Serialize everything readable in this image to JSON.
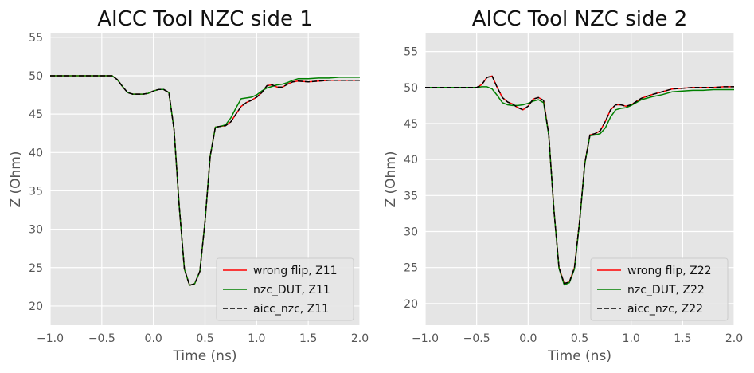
{
  "chart_data": [
    {
      "type": "line",
      "title": "AICC Tool NZC side 1",
      "xlabel": "Time (ns)",
      "ylabel": "Z (Ohm)",
      "xlim": [
        -1.0,
        2.0
      ],
      "ylim": [
        17.5,
        55.5
      ],
      "xticks": [
        "−1.0",
        "−0.5",
        "0.0",
        "0.5",
        "1.0",
        "1.5",
        "2.0"
      ],
      "yticks": [
        "20",
        "25",
        "30",
        "35",
        "40",
        "45",
        "50",
        "55"
      ],
      "grid": true,
      "legend_position": "lower right",
      "series": [
        {
          "name": "wrong flip, Z11",
          "color": "#ff0000",
          "dash": "solid",
          "x": [
            -1.0,
            -0.5,
            -0.4,
            -0.35,
            -0.3,
            -0.25,
            -0.2,
            -0.15,
            -0.1,
            -0.05,
            0.0,
            0.05,
            0.1,
            0.15,
            0.2,
            0.25,
            0.3,
            0.35,
            0.4,
            0.45,
            0.5,
            0.55,
            0.6,
            0.65,
            0.7,
            0.75,
            0.8,
            0.85,
            0.9,
            0.95,
            1.0,
            1.05,
            1.1,
            1.15,
            1.2,
            1.25,
            1.3,
            1.35,
            1.4,
            1.5,
            1.6,
            1.7,
            1.8,
            1.9,
            2.0
          ],
          "y": [
            50.0,
            50.0,
            50.0,
            49.5,
            48.6,
            47.8,
            47.6,
            47.6,
            47.6,
            47.7,
            48.0,
            48.2,
            48.2,
            47.8,
            43.0,
            33.0,
            24.8,
            22.7,
            22.9,
            24.5,
            31.0,
            39.5,
            43.3,
            43.4,
            43.5,
            44.0,
            45.0,
            46.0,
            46.5,
            46.8,
            47.2,
            47.8,
            48.7,
            48.8,
            48.5,
            48.5,
            48.9,
            49.2,
            49.3,
            49.2,
            49.3,
            49.4,
            49.4,
            49.4,
            49.4
          ]
        },
        {
          "name": "nzc_DUT, Z11",
          "color": "#008000",
          "dash": "solid",
          "x": [
            -1.0,
            -0.5,
            -0.4,
            -0.35,
            -0.3,
            -0.25,
            -0.2,
            -0.15,
            -0.1,
            -0.05,
            0.0,
            0.05,
            0.1,
            0.15,
            0.2,
            0.25,
            0.3,
            0.35,
            0.4,
            0.45,
            0.5,
            0.55,
            0.6,
            0.65,
            0.7,
            0.75,
            0.8,
            0.85,
            0.9,
            0.95,
            1.0,
            1.05,
            1.1,
            1.15,
            1.2,
            1.25,
            1.3,
            1.35,
            1.4,
            1.5,
            1.6,
            1.7,
            1.8,
            1.9,
            2.0
          ],
          "y": [
            50.0,
            50.0,
            50.0,
            49.5,
            48.6,
            47.8,
            47.6,
            47.6,
            47.6,
            47.7,
            48.0,
            48.2,
            48.2,
            47.8,
            43.0,
            33.0,
            24.8,
            22.7,
            22.9,
            24.5,
            31.0,
            39.5,
            43.3,
            43.4,
            43.6,
            44.5,
            45.8,
            47.0,
            47.1,
            47.2,
            47.5,
            48.0,
            48.4,
            48.6,
            48.8,
            48.9,
            49.1,
            49.4,
            49.6,
            49.6,
            49.7,
            49.7,
            49.8,
            49.8,
            49.8
          ]
        },
        {
          "name": "aicc_nzc, Z11",
          "color": "#000000",
          "dash": "dashed",
          "x": [
            -1.0,
            -0.5,
            -0.4,
            -0.35,
            -0.3,
            -0.25,
            -0.2,
            -0.15,
            -0.1,
            -0.05,
            0.0,
            0.05,
            0.1,
            0.15,
            0.2,
            0.25,
            0.3,
            0.35,
            0.4,
            0.45,
            0.5,
            0.55,
            0.6,
            0.65,
            0.7,
            0.75,
            0.8,
            0.85,
            0.9,
            0.95,
            1.0,
            1.05,
            1.1,
            1.15,
            1.2,
            1.25,
            1.3,
            1.35,
            1.4,
            1.5,
            1.6,
            1.7,
            1.8,
            1.9,
            2.0
          ],
          "y": [
            50.0,
            50.0,
            50.0,
            49.5,
            48.6,
            47.8,
            47.6,
            47.6,
            47.6,
            47.7,
            48.0,
            48.2,
            48.2,
            47.8,
            43.0,
            33.0,
            24.8,
            22.7,
            22.9,
            24.5,
            31.0,
            39.5,
            43.3,
            43.4,
            43.5,
            44.0,
            45.0,
            46.0,
            46.5,
            46.8,
            47.2,
            47.8,
            48.7,
            48.8,
            48.5,
            48.5,
            48.9,
            49.2,
            49.3,
            49.2,
            49.3,
            49.4,
            49.4,
            49.4,
            49.4
          ]
        }
      ]
    },
    {
      "type": "line",
      "title": "AICC Tool NZC side 2",
      "xlabel": "Time (ns)",
      "ylabel": "Z (Ohm)",
      "xlim": [
        -1.0,
        2.0
      ],
      "ylim": [
        17.0,
        57.5
      ],
      "xticks": [
        "−1.0",
        "−0.5",
        "0.0",
        "0.5",
        "1.0",
        "1.5",
        "2.0"
      ],
      "yticks": [
        "20",
        "25",
        "30",
        "35",
        "40",
        "45",
        "50",
        "55"
      ],
      "grid": true,
      "legend_position": "lower right",
      "series": [
        {
          "name": "wrong flip, Z22",
          "color": "#ff0000",
          "dash": "solid",
          "x": [
            -1.0,
            -0.5,
            -0.45,
            -0.4,
            -0.35,
            -0.3,
            -0.25,
            -0.2,
            -0.15,
            -0.1,
            -0.05,
            0.0,
            0.05,
            0.1,
            0.15,
            0.2,
            0.25,
            0.3,
            0.35,
            0.4,
            0.45,
            0.5,
            0.55,
            0.6,
            0.65,
            0.7,
            0.75,
            0.8,
            0.85,
            0.9,
            0.95,
            1.0,
            1.1,
            1.2,
            1.3,
            1.4,
            1.5,
            1.6,
            1.7,
            1.8,
            1.9,
            2.0
          ],
          "y": [
            50.0,
            50.0,
            50.4,
            51.4,
            51.6,
            50.0,
            48.6,
            48.0,
            47.7,
            47.2,
            46.9,
            47.4,
            48.4,
            48.6,
            48.2,
            43.5,
            33.0,
            25.0,
            22.8,
            23.0,
            25.0,
            31.5,
            39.5,
            43.4,
            43.6,
            44.0,
            45.3,
            46.9,
            47.6,
            47.6,
            47.4,
            47.6,
            48.5,
            49.0,
            49.4,
            49.8,
            49.9,
            50.0,
            50.0,
            50.0,
            50.1,
            50.1
          ]
        },
        {
          "name": "nzc_DUT, Z22",
          "color": "#008000",
          "dash": "solid",
          "x": [
            -1.0,
            -0.5,
            -0.45,
            -0.4,
            -0.35,
            -0.3,
            -0.25,
            -0.2,
            -0.15,
            -0.1,
            -0.05,
            0.0,
            0.05,
            0.1,
            0.15,
            0.2,
            0.25,
            0.3,
            0.35,
            0.4,
            0.45,
            0.5,
            0.55,
            0.6,
            0.65,
            0.7,
            0.75,
            0.8,
            0.85,
            0.9,
            0.95,
            1.0,
            1.1,
            1.2,
            1.3,
            1.4,
            1.5,
            1.6,
            1.7,
            1.8,
            1.9,
            2.0
          ],
          "y": [
            50.0,
            50.0,
            50.1,
            50.1,
            49.8,
            48.9,
            47.9,
            47.6,
            47.5,
            47.5,
            47.6,
            47.8,
            48.1,
            48.3,
            47.9,
            43.4,
            33.0,
            24.9,
            22.6,
            22.9,
            24.8,
            31.4,
            39.4,
            43.3,
            43.4,
            43.6,
            44.4,
            45.9,
            46.9,
            47.1,
            47.2,
            47.5,
            48.3,
            48.7,
            49.0,
            49.4,
            49.5,
            49.6,
            49.6,
            49.7,
            49.7,
            49.7
          ]
        },
        {
          "name": "aicc_nzc, Z22",
          "color": "#000000",
          "dash": "dashed",
          "x": [
            -1.0,
            -0.5,
            -0.45,
            -0.4,
            -0.35,
            -0.3,
            -0.25,
            -0.2,
            -0.15,
            -0.1,
            -0.05,
            0.0,
            0.05,
            0.1,
            0.15,
            0.2,
            0.25,
            0.3,
            0.35,
            0.4,
            0.45,
            0.5,
            0.55,
            0.6,
            0.65,
            0.7,
            0.75,
            0.8,
            0.85,
            0.9,
            0.95,
            1.0,
            1.1,
            1.2,
            1.3,
            1.4,
            1.5,
            1.6,
            1.7,
            1.8,
            1.9,
            2.0
          ],
          "y": [
            50.0,
            50.0,
            50.4,
            51.4,
            51.6,
            50.0,
            48.6,
            48.0,
            47.7,
            47.2,
            46.9,
            47.4,
            48.4,
            48.6,
            48.2,
            43.5,
            33.0,
            25.0,
            22.8,
            23.0,
            25.0,
            31.5,
            39.5,
            43.4,
            43.6,
            44.0,
            45.3,
            46.9,
            47.6,
            47.6,
            47.4,
            47.6,
            48.5,
            49.0,
            49.4,
            49.8,
            49.9,
            50.0,
            50.0,
            50.0,
            50.1,
            50.1
          ]
        }
      ]
    }
  ]
}
